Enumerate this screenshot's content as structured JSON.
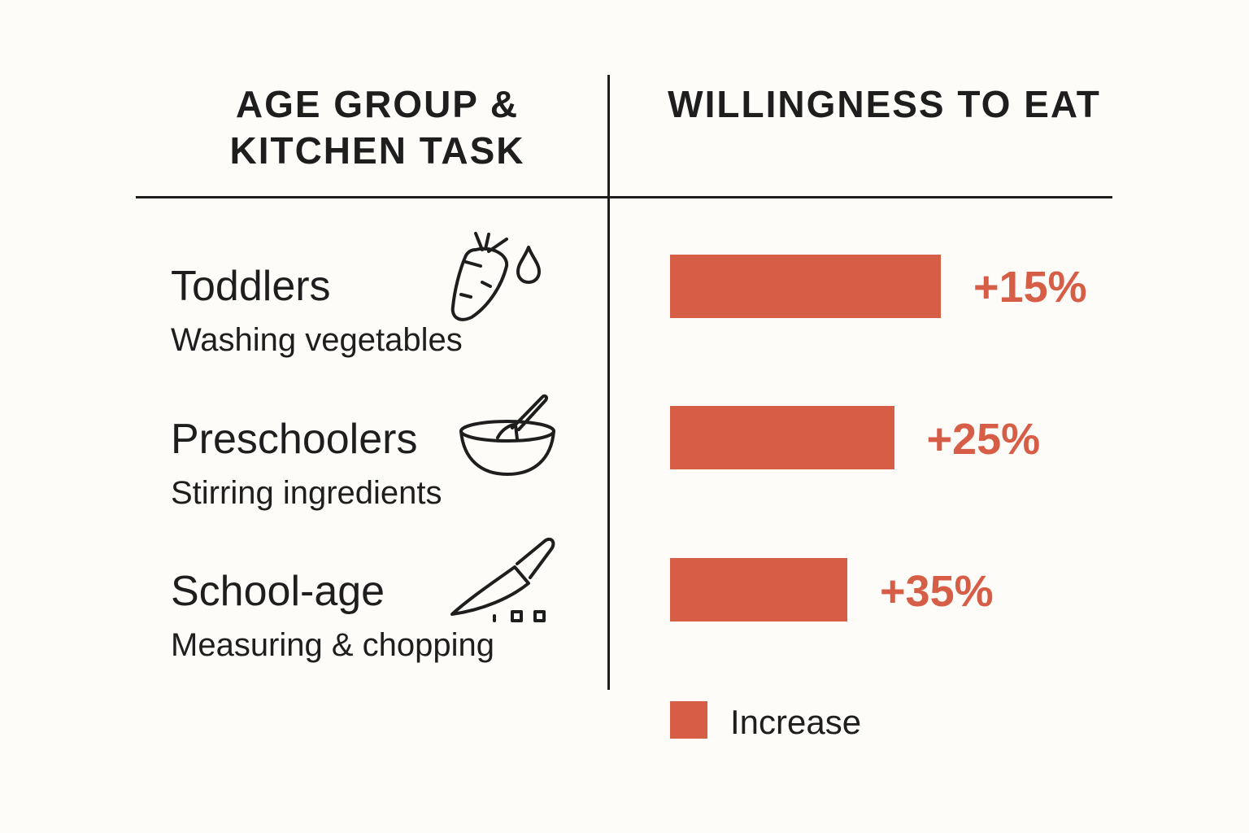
{
  "chart_data": {
    "type": "bar",
    "orientation": "horizontal",
    "column_headers": [
      "AGE GROUP & KITCHEN TASK",
      "WILLINGNESS TO EAT"
    ],
    "header_left_lines": [
      "AGE GROUP &",
      "KITCHEN TASK"
    ],
    "categories": [
      "Toddlers",
      "Preschoolers",
      "School-age"
    ],
    "tasks": [
      "Washing vegetables",
      "Stirring ingredients",
      "Measuring & chopping"
    ],
    "icons": [
      "carrot-water-drop-icon",
      "mixing-bowl-icon",
      "knife-icon"
    ],
    "series": [
      {
        "name": "Increase",
        "values": [
          15,
          25,
          35
        ]
      }
    ],
    "data_labels": [
      "+15%",
      "+25%",
      "+35%"
    ],
    "unit": "%",
    "legend": {
      "label": "Increase",
      "placement": "bottom"
    },
    "colors": {
      "bar": "#d65d46",
      "label": "#d65d46",
      "text": "#1e1e1e",
      "background": "#fdfcf8"
    },
    "grid": false
  }
}
